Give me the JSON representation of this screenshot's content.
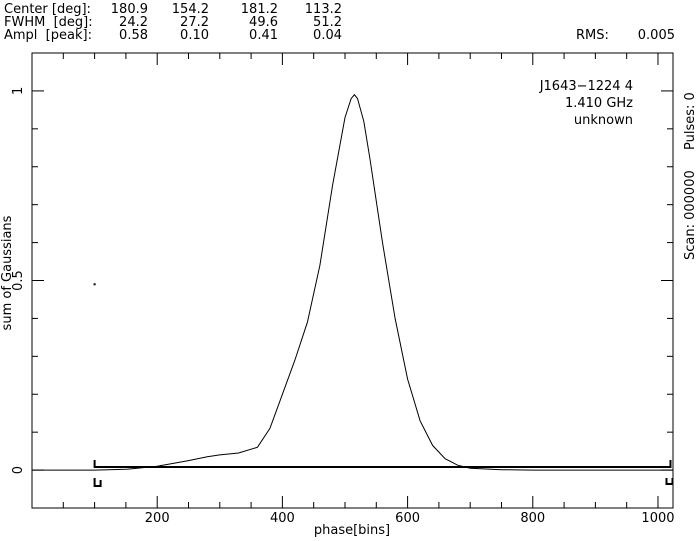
{
  "header": {
    "rows": [
      {
        "label": "Center [deg]:",
        "values": [
          "180.9",
          "154.2",
          "181.2",
          "113.2"
        ]
      },
      {
        "label": "FWHM  [deg]:",
        "values": [
          "24.2",
          "27.2",
          "49.6",
          "51.2"
        ]
      },
      {
        "label": "Ampl  [peak]:",
        "values": [
          "0.58",
          "0.10",
          "0.41",
          "0.04"
        ]
      }
    ],
    "rms_label": "RMS:",
    "rms_value": "0.005"
  },
  "info": {
    "source": "J1643−1224 4",
    "frequency": "1.410 GHz",
    "status": "unknown"
  },
  "side_text": {
    "pulses": "Pulses: 0",
    "scan": "Scan: 000000"
  },
  "chart_data": {
    "type": "line",
    "title": "",
    "xlabel": "phase[bins]",
    "ylabel": "sum of Gaussians",
    "xlim": [
      0,
      1024
    ],
    "ylim": [
      -0.1,
      1.1
    ],
    "x_ticks": [
      200,
      400,
      600,
      800,
      1000
    ],
    "y_ticks": [
      0,
      0.5,
      1
    ],
    "y_tick_labels": [
      "0",
      "0.5",
      "1"
    ],
    "grid": false,
    "series": [
      {
        "x": [
          0,
          100,
          150,
          200,
          250,
          280,
          300,
          330,
          360,
          380,
          400,
          420,
          440,
          460,
          480,
          500,
          510,
          515,
          520,
          530,
          540,
          560,
          580,
          600,
          620,
          640,
          660,
          680,
          700,
          750,
          800,
          1024
        ],
        "y": [
          0.0,
          0.0,
          0.002,
          0.01,
          0.025,
          0.035,
          0.04,
          0.045,
          0.06,
          0.11,
          0.2,
          0.29,
          0.39,
          0.54,
          0.75,
          0.93,
          0.98,
          0.99,
          0.98,
          0.92,
          0.82,
          0.6,
          0.4,
          0.24,
          0.13,
          0.065,
          0.03,
          0.013,
          0.005,
          0.001,
          0.0,
          0.0
        ]
      }
    ],
    "window": {
      "start": 100,
      "end": 1020
    },
    "stray_point": {
      "x": 100,
      "y": 0.49
    }
  }
}
